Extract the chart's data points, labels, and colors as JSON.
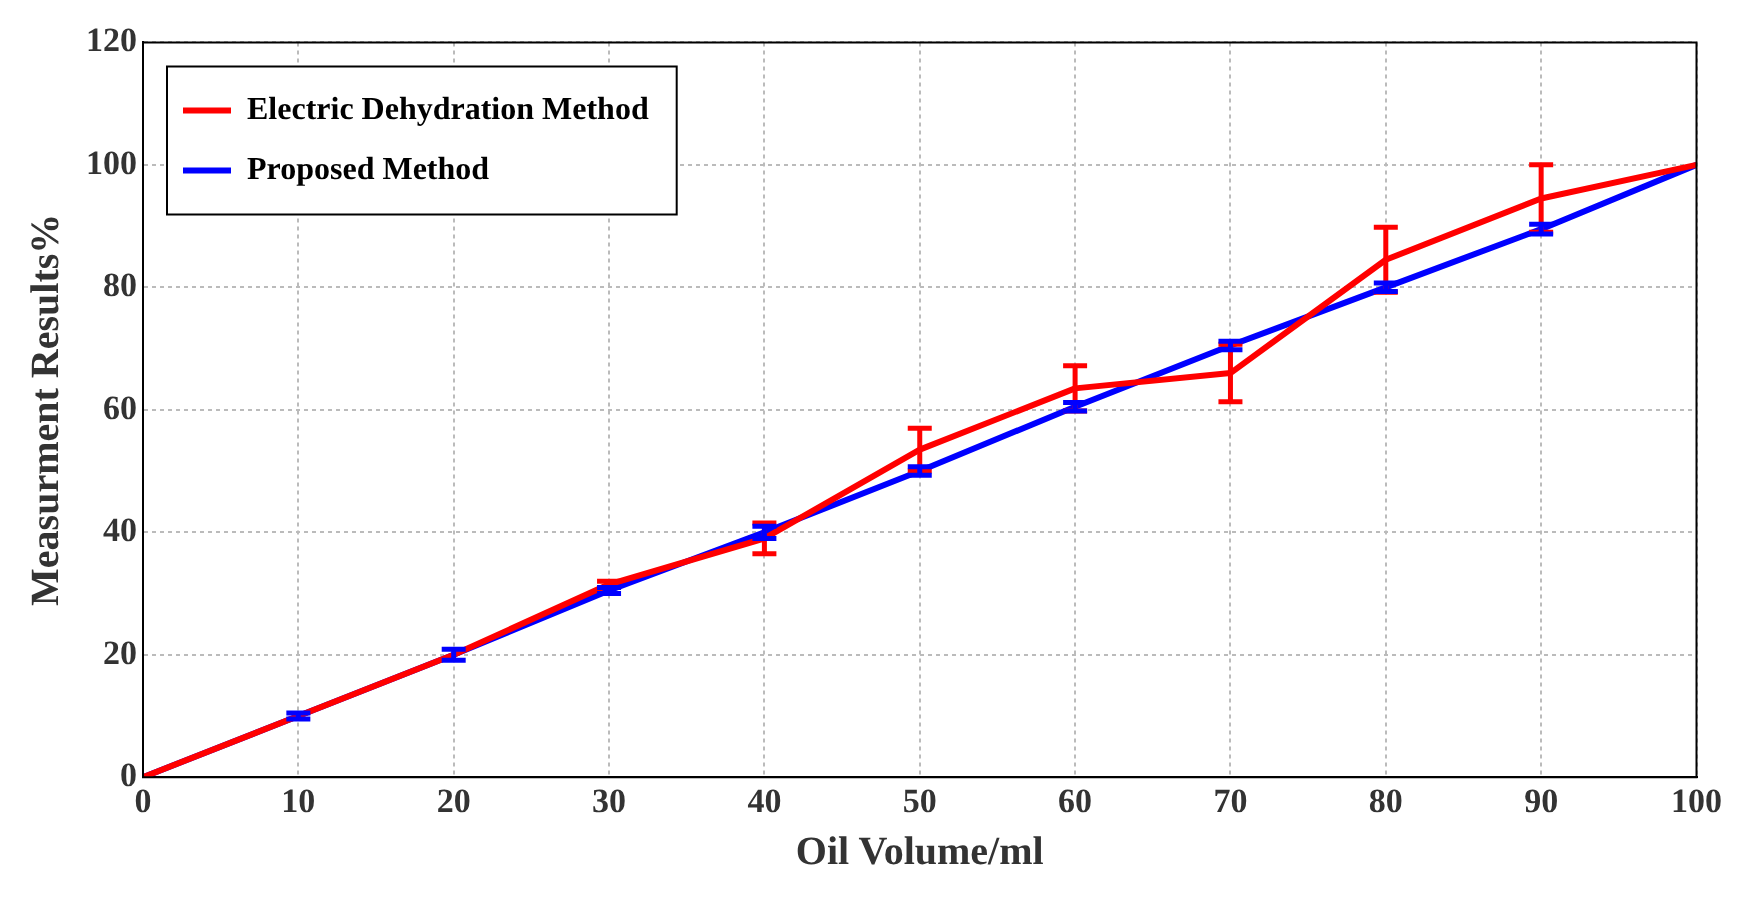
{
  "chart_data": {
    "type": "line",
    "xlabel": "Oil Volume/ml",
    "ylabel": "Measurment Results%",
    "x": [
      0,
      10,
      20,
      30,
      40,
      50,
      60,
      70,
      80,
      90,
      100
    ],
    "series": [
      {
        "name": "Electric Dehydration Method",
        "color": "#ff0000",
        "values": [
          0,
          10,
          20,
          31.5,
          39,
          53.5,
          63.5,
          66,
          84.5,
          94.5,
          100
        ],
        "errors": [
          null,
          null,
          null,
          0.5,
          2.5,
          3.5,
          3.7,
          4.7,
          5.3,
          5.5,
          null
        ]
      },
      {
        "name": "Proposed Method",
        "color": "#0000ff",
        "values": [
          0,
          10,
          20,
          30.5,
          40,
          50,
          60.5,
          70.5,
          80,
          89.5,
          100
        ],
        "errors": [
          null,
          0.5,
          0.9,
          0.5,
          1,
          0.7,
          0.7,
          0.7,
          0.7,
          0.8,
          null
        ]
      }
    ],
    "xlim": [
      0,
      100
    ],
    "xticks": [
      0,
      10,
      20,
      30,
      40,
      50,
      60,
      70,
      80,
      90,
      100
    ],
    "ylim": [
      0,
      120
    ],
    "yticks": [
      0,
      20,
      40,
      60,
      80,
      100,
      120
    ],
    "grid": true,
    "legend": "top left",
    "marker": "none",
    "line_style": "solid"
  }
}
